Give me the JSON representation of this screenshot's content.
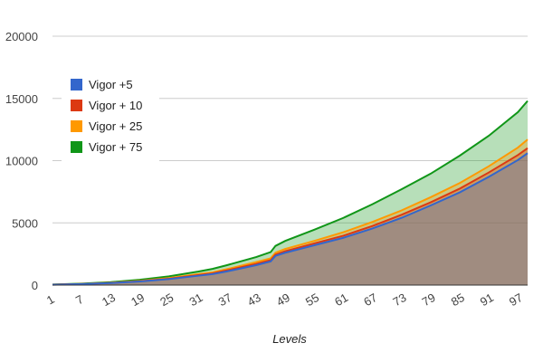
{
  "chart_data": {
    "type": "area",
    "xlabel": "Levels",
    "ylabel": "",
    "ylim": [
      0,
      20000
    ],
    "yticks": [
      0,
      5000,
      10000,
      15000,
      20000
    ],
    "xtick_labels": [
      "1",
      "7",
      "13",
      "19",
      "25",
      "31",
      "37",
      "43",
      "49",
      "55",
      "61",
      "67",
      "73",
      "79",
      "85",
      "91",
      "97"
    ],
    "x_range": [
      1,
      99
    ],
    "grid": true,
    "legend_position": "left",
    "x": [
      1,
      7,
      13,
      19,
      25,
      31,
      34,
      37,
      43,
      46,
      47,
      49,
      55,
      61,
      67,
      73,
      79,
      85,
      91,
      97,
      99
    ],
    "series": [
      {
        "name": "Vigor +5",
        "color": "#3366cc",
        "values": [
          30,
          80,
          160,
          290,
          480,
          750,
          880,
          1100,
          1600,
          1900,
          2350,
          2600,
          3200,
          3800,
          4550,
          5400,
          6400,
          7450,
          8700,
          10050,
          10600
        ]
      },
      {
        "name": "Vigor + 10",
        "color": "#dc3912",
        "values": [
          32,
          85,
          170,
          310,
          510,
          800,
          940,
          1180,
          1700,
          2000,
          2450,
          2720,
          3350,
          3970,
          4750,
          5650,
          6650,
          7750,
          9050,
          10450,
          11000
        ]
      },
      {
        "name": "Vigor + 25",
        "color": "#ff9900",
        "values": [
          35,
          95,
          190,
          340,
          560,
          870,
          1020,
          1280,
          1850,
          2150,
          2600,
          2900,
          3550,
          4250,
          5080,
          6000,
          7060,
          8200,
          9550,
          11050,
          11700
        ]
      },
      {
        "name": "Vigor + 75",
        "color": "#109618",
        "values": [
          45,
          120,
          240,
          430,
          700,
          1080,
          1300,
          1600,
          2250,
          2650,
          3150,
          3550,
          4450,
          5400,
          6500,
          7700,
          8950,
          10400,
          12000,
          13900,
          14800
        ]
      }
    ]
  }
}
